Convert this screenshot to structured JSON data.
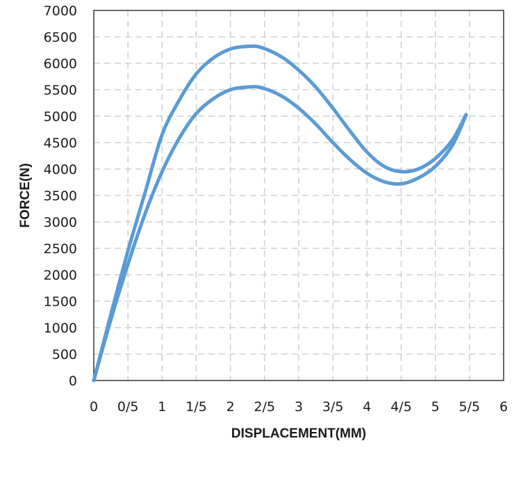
{
  "chart_data": {
    "type": "line",
    "title": "",
    "xlabel": "DISPLACEMENT(MM)",
    "ylabel": "FORCE(N)",
    "xlim": [
      0,
      6
    ],
    "ylim": [
      0,
      7000
    ],
    "x_tick_values": [
      0,
      0.5,
      1,
      1.5,
      2,
      2.5,
      3,
      3.5,
      4,
      4.5,
      5,
      5.5,
      6
    ],
    "x_tick_labels": [
      "0",
      "0/5",
      "1",
      "1/5",
      "2",
      "2/5",
      "3",
      "3/5",
      "4",
      "4/5",
      "5",
      "5/5",
      "6"
    ],
    "y_tick_values": [
      0,
      500,
      1000,
      1500,
      2000,
      2500,
      3000,
      3500,
      4000,
      4500,
      5000,
      5500,
      6000,
      6500,
      7000
    ],
    "y_tick_labels": [
      "0",
      "500",
      "1000",
      "1500",
      "2000",
      "2500",
      "3000",
      "3500",
      "4000",
      "4500",
      "5000",
      "5500",
      "6000",
      "6500",
      "7000"
    ],
    "grid": true,
    "legend": "none",
    "line_color": "#5b9bd5",
    "series": [
      {
        "x": [
          0,
          0.25,
          0.5,
          0.75,
          1.0,
          1.25,
          1.5,
          1.75,
          2.0,
          2.25,
          2.45,
          2.75,
          3.0,
          3.25,
          3.5,
          3.75,
          4.0,
          4.25,
          4.5,
          4.75,
          5.0,
          5.25,
          5.45
        ],
        "y": [
          0,
          1250,
          2450,
          3550,
          4650,
          5300,
          5800,
          6100,
          6270,
          6320,
          6300,
          6120,
          5870,
          5550,
          5150,
          4720,
          4320,
          4050,
          3950,
          4000,
          4200,
          4550,
          5030
        ]
      },
      {
        "x": [
          0,
          0.25,
          0.5,
          0.75,
          1.0,
          1.25,
          1.5,
          1.75,
          2.0,
          2.25,
          2.45,
          2.75,
          3.0,
          3.25,
          3.5,
          3.75,
          4.0,
          4.25,
          4.5,
          4.75,
          5.0,
          5.25,
          5.45
        ],
        "y": [
          0,
          1150,
          2200,
          3150,
          3950,
          4580,
          5050,
          5330,
          5500,
          5550,
          5540,
          5380,
          5150,
          4850,
          4500,
          4180,
          3920,
          3760,
          3720,
          3830,
          4050,
          4450,
          5020
        ]
      }
    ]
  }
}
